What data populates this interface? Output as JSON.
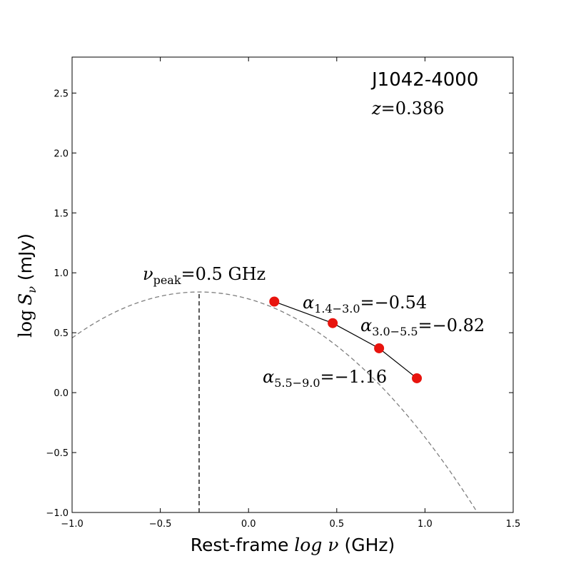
{
  "chart_data": {
    "type": "line",
    "title": "J1042-4000",
    "redshift": {
      "symbol": "z",
      "value": "0.386"
    },
    "xlabel": {
      "prefix": "Rest-frame ",
      "math": "log ν",
      "suffix": " (GHz)"
    },
    "ylabel": {
      "math_log": "log",
      "math_s": "S",
      "math_sub": "ν",
      "suffix": " (mJy)"
    },
    "xlim": [
      -1.0,
      1.5
    ],
    "ylim": [
      -1.0,
      2.8
    ],
    "xticks": [
      -1.0,
      -0.5,
      0.0,
      0.5,
      1.0,
      1.5
    ],
    "xtick_labels": [
      "−1.0",
      "−0.5",
      "0.0",
      "0.5",
      "1.0",
      "1.5"
    ],
    "yticks": [
      -1.0,
      -0.5,
      0.0,
      0.5,
      1.0,
      1.5,
      2.0,
      2.5
    ],
    "ytick_labels": [
      "−1.0",
      "−0.5",
      "0.0",
      "0.5",
      "1.0",
      "1.5",
      "2.0",
      "2.5"
    ],
    "grid": false,
    "points": {
      "color": "#e8140e",
      "x": [
        0.146,
        0.477,
        0.74,
        0.954
      ],
      "y": [
        0.76,
        0.58,
        0.37,
        0.12
      ]
    },
    "fit_curve": {
      "color": "#7f7f7f",
      "style": "dashed",
      "model": "quadratic",
      "x_peak": -0.28,
      "y_peak": 0.84,
      "curvature": 0.74,
      "x_range": [
        -1.0,
        1.5
      ]
    },
    "peak_marker": {
      "x": -0.28,
      "label_nu": "ν",
      "label_sub": "peak",
      "label_rest": "=0.5 GHz"
    },
    "spectral_indices": [
      {
        "alpha": "α",
        "sub": "1.4−3.0",
        "value": "=−0.54"
      },
      {
        "alpha": "α",
        "sub": "3.0−5.5",
        "value": "=−0.82"
      },
      {
        "alpha": "α",
        "sub": "5.5−9.0",
        "value": "=−1.16"
      }
    ]
  }
}
